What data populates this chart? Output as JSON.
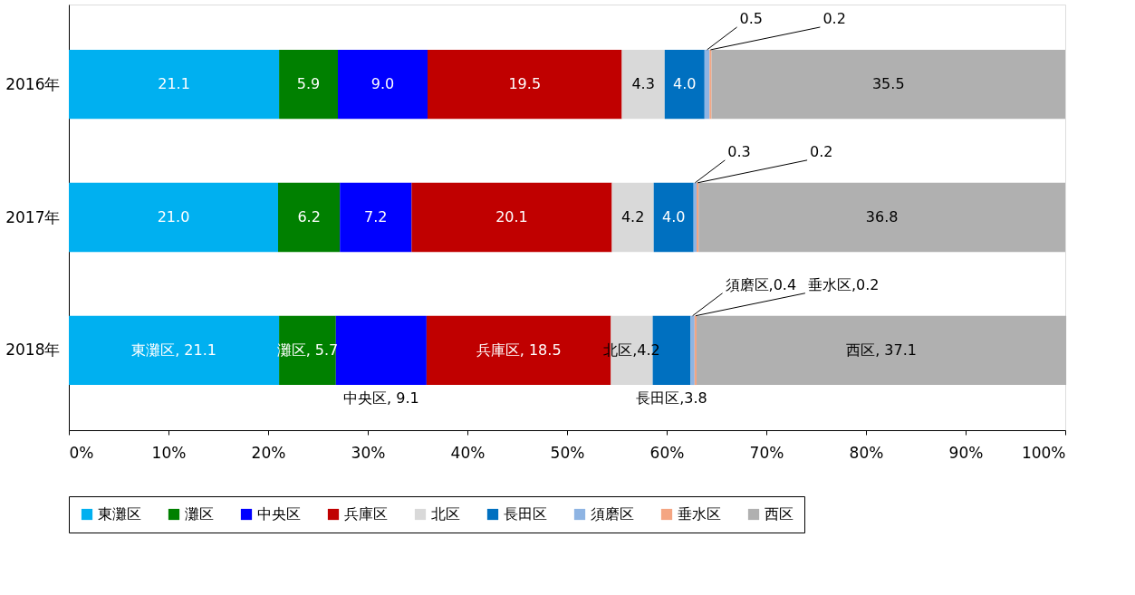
{
  "chart_data": {
    "type": "bar",
    "orientation": "horizontal",
    "stacked": true,
    "categories": [
      "2016年",
      "2017年",
      "2018年"
    ],
    "xlim": [
      0,
      100
    ],
    "xticks": [
      {
        "value": 0,
        "label": "0%"
      },
      {
        "value": 10,
        "label": "10%"
      },
      {
        "value": 20,
        "label": "20%"
      },
      {
        "value": 30,
        "label": "30%"
      },
      {
        "value": 40,
        "label": "40%"
      },
      {
        "value": 50,
        "label": "50%"
      },
      {
        "value": 60,
        "label": "60%"
      },
      {
        "value": 70,
        "label": "70%"
      },
      {
        "value": 80,
        "label": "80%"
      },
      {
        "value": 90,
        "label": "90%"
      },
      {
        "value": 100,
        "label": "100%"
      }
    ],
    "grid": false,
    "legend": "bottom",
    "series": [
      {
        "name": "東灘区",
        "color": "#00b0f0",
        "values": [
          21.1,
          21.0,
          21.1
        ],
        "value_labels": [
          "21.1",
          "21.0",
          "東灘区, 21.1"
        ]
      },
      {
        "name": "灘区",
        "color": "#008000",
        "values": [
          5.9,
          6.2,
          5.7
        ],
        "value_labels": [
          "5.9",
          "6.2",
          "灘区, 5.7"
        ]
      },
      {
        "name": "中央区",
        "color": "#0000ff",
        "values": [
          9.0,
          7.2,
          9.1
        ],
        "value_labels": [
          "9.0",
          "7.2",
          "中央区, 9.1"
        ]
      },
      {
        "name": "兵庫区",
        "color": "#c00000",
        "values": [
          19.5,
          20.1,
          18.5
        ],
        "value_labels": [
          "19.5",
          "20.1",
          "兵庫区, 18.5"
        ]
      },
      {
        "name": "北区",
        "color": "#d9d9d9",
        "values": [
          4.3,
          4.2,
          4.2
        ],
        "value_labels": [
          "4.3",
          "4.2",
          "北区,4.2"
        ]
      },
      {
        "name": "長田区",
        "color": "#0070c0",
        "values": [
          4.0,
          4.0,
          3.8
        ],
        "value_labels": [
          "4.0",
          "4.0",
          "長田区,3.8"
        ]
      },
      {
        "name": "須磨区",
        "color": "#8eb4e3",
        "values": [
          0.5,
          0.3,
          0.4
        ],
        "value_labels": [
          "0.5",
          "0.3",
          "須磨区,0.4"
        ]
      },
      {
        "name": "垂水区",
        "color": "#f4a582",
        "values": [
          0.2,
          0.2,
          0.2
        ],
        "value_labels": [
          "0.2",
          "0.2",
          "垂水区,0.2"
        ]
      },
      {
        "name": "西区",
        "color": "#b0b0b0",
        "values": [
          35.5,
          36.8,
          37.1
        ],
        "value_labels": [
          "35.5",
          "36.8",
          "西区, 37.1"
        ]
      }
    ]
  }
}
